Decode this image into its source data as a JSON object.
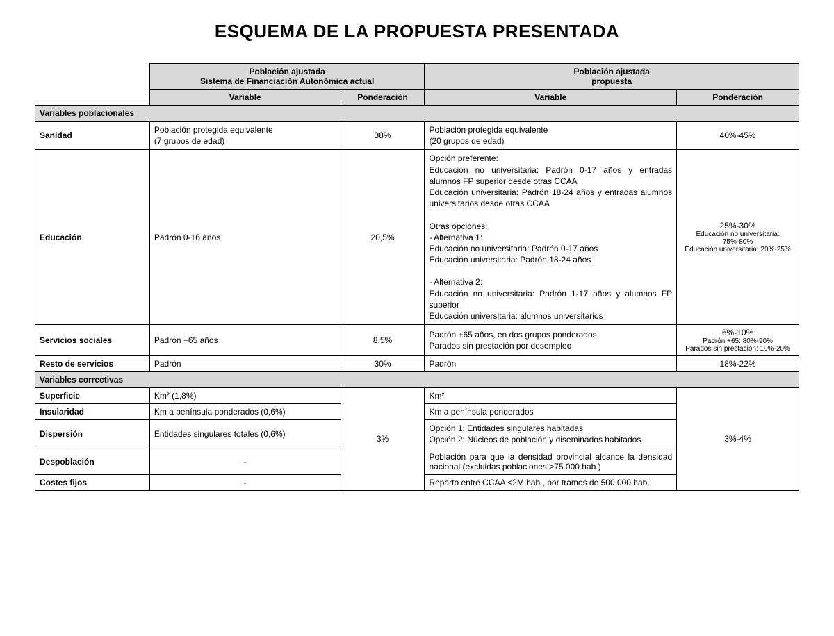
{
  "title": "ESQUEMA DE LA PROPUESTA PRESENTADA",
  "columns": {
    "left_group_title_l1": "Población ajustada",
    "left_group_title_l2": "Sistema de Financiación Autonómica actual",
    "right_group_title_l1": "Población ajustada",
    "right_group_title_l2": "propuesta",
    "variable": "Variable",
    "ponderacion": "Ponderación"
  },
  "sections": {
    "poblacionales": "Variables poblacionales",
    "correctivas": "Variables correctivas"
  },
  "rows": {
    "sanidad": {
      "label": "Sanidad",
      "actual_var": "Población protegida equivalente\n(7 grupos de edad)",
      "actual_pond": "38%",
      "prop_var": "Población protegida equivalente\n(20 grupos de edad)",
      "prop_pond": "40%-45%"
    },
    "educacion": {
      "label": "Educación",
      "actual_var": "Padrón 0-16 años",
      "actual_pond": "20,5%",
      "prop_var": "Opción preferente:\nEducación no universitaria: Padrón 0-17 años y entradas alumnos FP superior desde otras CCAA\nEducación universitaria: Padrón 18-24 años y entradas alumnos universitarios desde otras CCAA\n\nOtras opciones:\n- Alternativa 1:\n  Educación no universitaria: Padrón 0-17 años\n  Educación universitaria: Padrón 18-24 años\n\n- Alternativa 2:\n  Educación no universitaria: Padrón 1-17 años y alumnos FP superior\n  Educación universitaria: alumnos universitarios",
      "prop_pond_main": "25%-30%",
      "prop_pond_sub1": "Educación no universitaria: 75%-80%",
      "prop_pond_sub2": "Educación universitaria: 20%-25%"
    },
    "sociales": {
      "label": "Servicios sociales",
      "actual_var": "Padrón +65 años",
      "actual_pond": "8,5%",
      "prop_var": "Padrón +65 años, en dos grupos ponderados\nParados sin prestación por desempleo",
      "prop_pond_main": "6%-10%",
      "prop_pond_sub1": "Padrón +65: 80%-90%",
      "prop_pond_sub2": "Parados sin prestación: 10%-20%"
    },
    "resto": {
      "label": "Resto de servicios",
      "actual_var": "Padrón",
      "actual_pond": "30%",
      "prop_var": "Padrón",
      "prop_pond": "18%-22%"
    },
    "superficie": {
      "label": "Superficie",
      "actual_var": "Km²  (1,8%)",
      "prop_var": "Km²"
    },
    "insularidad": {
      "label": "Insularidad",
      "actual_var": "Km a península ponderados (0,6%)",
      "prop_var": "Km a península ponderados"
    },
    "dispersion": {
      "label": "Dispersión",
      "actual_var": "Entidades singulares totales  (0,6%)",
      "prop_var": "Opción 1: Entidades singulares habitadas\nOpción 2: Núcleos de población y diseminados habitados"
    },
    "despoblacion": {
      "label": "Despoblación",
      "actual_var": "-",
      "prop_var": "Población para que la densidad provincial alcance la densidad nacional (excluidas poblaciones >75.000 hab.)"
    },
    "costesfijos": {
      "label": "Costes fijos",
      "actual_var": "-",
      "prop_var": "Reparto entre CCAA <2M hab., por tramos de 500.000 hab."
    },
    "correctivas_pond_actual": "3%",
    "correctivas_pond_prop": "3%-4%"
  }
}
